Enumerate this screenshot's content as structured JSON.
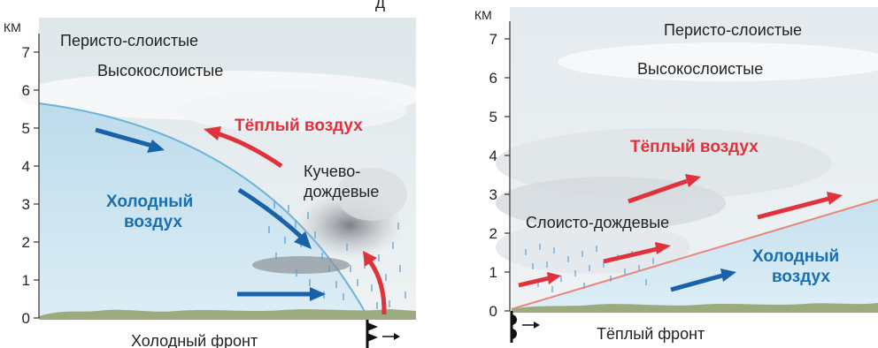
{
  "top_fragment": "д",
  "cold_front": {
    "unit": "КМ",
    "y_ticks": [
      "0",
      "1",
      "2",
      "3",
      "4",
      "5",
      "6",
      "7"
    ],
    "labels": {
      "cirrostratus": "Перисто-слоистые",
      "altostratus": "Высокослоистые",
      "warm_air": "Тёплый воздух",
      "cumulonimbus_line1": "Кучево-",
      "cumulonimbus_line2": "дождевые",
      "cold_air_line1": "Холодный",
      "cold_air_line2": "воздух",
      "caption": "Холодный фронт"
    }
  },
  "warm_front": {
    "unit": "КМ",
    "y_ticks": [
      "0",
      "1",
      "2",
      "3",
      "4",
      "5",
      "6",
      "7"
    ],
    "labels": {
      "cirrostratus": "Перисто-слоистые",
      "altostratus": "Высокослоистые",
      "warm_air": "Тёплый воздух",
      "nimbostratus": "Слоисто-дождевые",
      "cold_air_line1": "Холодный",
      "cold_air_line2": "воздух",
      "caption": "Тёплый фронт"
    }
  },
  "colors": {
    "warm_arrow": "#e0323c",
    "cold_arrow": "#1a62a8",
    "cold_label": "#1a6fb0",
    "warm_label": "#e0323c",
    "cold_air_fill": "#cfe6f2",
    "sky": "#e9eef1",
    "rain": "#5fa0d4",
    "front_line_warm": "#e8867c",
    "front_line_cold": "#6fb3d8"
  }
}
